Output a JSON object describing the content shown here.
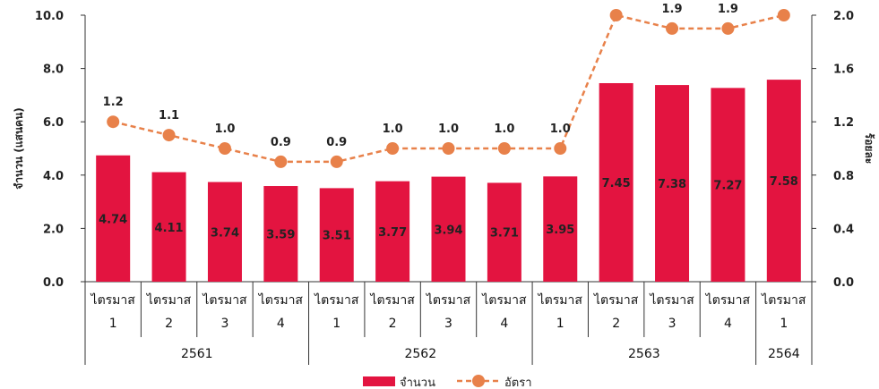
{
  "chart_data": {
    "type": "bar",
    "categories": [
      {
        "quarter": "ไตรมาส",
        "num": "1"
      },
      {
        "quarter": "ไตรมาส",
        "num": "2"
      },
      {
        "quarter": "ไตรมาส",
        "num": "3"
      },
      {
        "quarter": "ไตรมาส",
        "num": "4"
      },
      {
        "quarter": "ไตรมาส",
        "num": "1"
      },
      {
        "quarter": "ไตรมาส",
        "num": "2"
      },
      {
        "quarter": "ไตรมาส",
        "num": "3"
      },
      {
        "quarter": "ไตรมาส",
        "num": "4"
      },
      {
        "quarter": "ไตรมาส",
        "num": "1"
      },
      {
        "quarter": "ไตรมาส",
        "num": "2"
      },
      {
        "quarter": "ไตรมาส",
        "num": "3"
      },
      {
        "quarter": "ไตรมาส",
        "num": "4"
      },
      {
        "quarter": "ไตรมาส",
        "num": "1"
      }
    ],
    "years": [
      {
        "label": "2561",
        "count": 4
      },
      {
        "label": "2562",
        "count": 4
      },
      {
        "label": "2563",
        "count": 4
      },
      {
        "label": "2564",
        "count": 1
      }
    ],
    "series": [
      {
        "name": "จำนวน",
        "kind": "bar",
        "axis": "left",
        "color": "#e31440",
        "values": [
          4.74,
          4.11,
          3.74,
          3.59,
          3.51,
          3.77,
          3.94,
          3.71,
          3.95,
          7.45,
          7.38,
          7.27,
          7.58
        ],
        "labels": [
          "4.74",
          "4.11",
          "3.74",
          "3.59",
          "3.51",
          "3.77",
          "3.94",
          "3.71",
          "3.95",
          "7.45",
          "7.38",
          "7.27",
          "7.58"
        ]
      },
      {
        "name": "อัตรา",
        "kind": "line",
        "axis": "right",
        "color": "#e8814a",
        "values": [
          1.2,
          1.1,
          1.0,
          0.9,
          0.9,
          1.0,
          1.0,
          1.0,
          1.0,
          2.0,
          1.9,
          1.9,
          2.0
        ],
        "labels": [
          "1.2",
          "1.1",
          "1.0",
          "0.9",
          "0.9",
          "1.0",
          "1.0",
          "1.0",
          "1.0",
          "2.0",
          "1.9",
          "1.9",
          "2.0"
        ]
      }
    ],
    "ylabel_left": "จำนวน (แสนคน)",
    "ylabel_right": "ร้อยละ",
    "ylim_left": [
      0,
      10
    ],
    "ylim_right": [
      0,
      2
    ],
    "yticks_left": [
      "0.0",
      "2.0",
      "4.0",
      "6.0",
      "8.0",
      "10.0"
    ],
    "yticks_right": [
      "0.0",
      "0.4",
      "0.8",
      "1.2",
      "1.6",
      "2.0"
    ],
    "grid": false,
    "legend_position": "bottom"
  }
}
